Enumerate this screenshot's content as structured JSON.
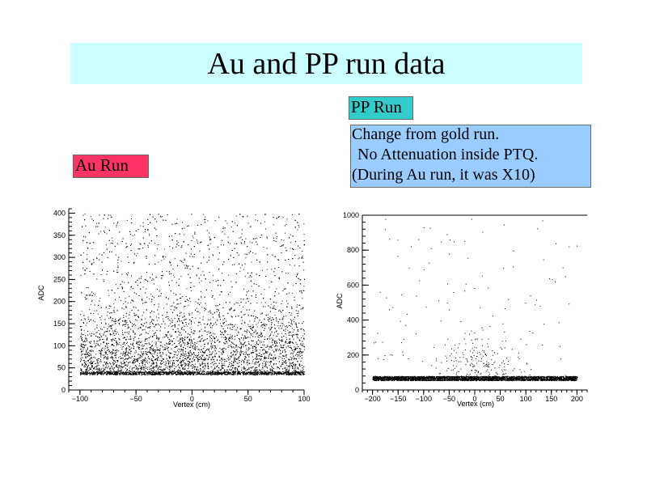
{
  "slide": {
    "title": "Au and PP run data",
    "au_label": "Au Run",
    "pp_label": "PP Run",
    "note_lines": [
      "Change from gold run.",
      "No Attenuation inside PTQ.",
      "(During Au run, it was X10)"
    ],
    "colors": {
      "title_bg": "#ccffff",
      "au_label_bg": "#ff3366",
      "pp_label_bg": "#33cccc",
      "note_bg": "#99ccff"
    }
  },
  "chart_data": [
    {
      "type": "scatter",
      "name_label": "Au Run",
      "xlabel": "Vertex (cm)",
      "ylabel": "ADC",
      "xlim": [
        -110,
        100
      ],
      "ylim": [
        0,
        410
      ],
      "xticks": [
        -100,
        -50,
        0,
        50,
        100
      ],
      "yticks": [
        0,
        50,
        100,
        150,
        200,
        250,
        300,
        350,
        400
      ],
      "grid": false,
      "point_count": 9000,
      "description_of_distribution": {
        "pedestal_band_adc": [
          35,
          42
        ],
        "dense_core_adc": [
          40,
          160
        ],
        "x_range": [
          -100,
          100
        ]
      }
    },
    {
      "type": "scatter",
      "name_label": "PP Run",
      "xlabel": "Vertex (cm)",
      "ylabel": "ADC",
      "xlim": [
        -220,
        220
      ],
      "ylim": [
        0,
        1000
      ],
      "xticks": [
        -200,
        -150,
        -100,
        -50,
        0,
        50,
        100,
        150,
        200
      ],
      "yticks": [
        0,
        200,
        400,
        600,
        800,
        1000
      ],
      "grid": false,
      "point_count": 4000,
      "description_of_distribution": {
        "pedestal_band_adc": [
          55,
          80
        ],
        "x_range": [
          -200,
          200
        ]
      }
    }
  ]
}
